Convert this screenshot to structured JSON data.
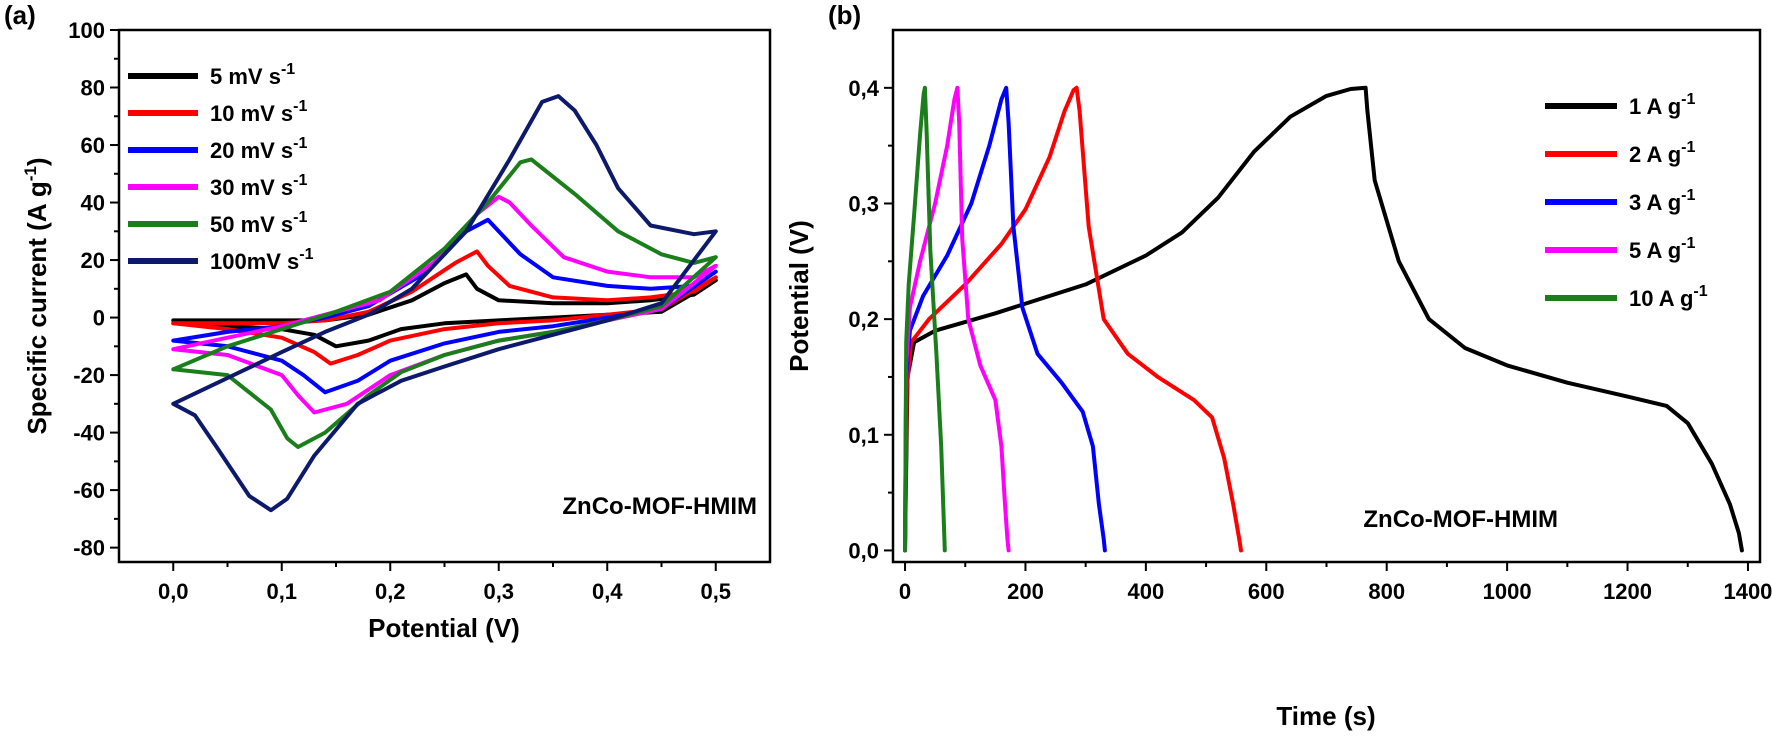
{
  "chart_data": [
    {
      "panel": "(a)",
      "type": "line",
      "xlabel": "Potential (V)",
      "ylabel": "Specific current (A g",
      "ylabel_sup": "-1",
      "ylabel_end": ")",
      "xlim": [
        -0.05,
        0.55
      ],
      "ylim": [
        -85,
        100
      ],
      "x_ticks": [
        0.0,
        0.1,
        0.2,
        0.3,
        0.4,
        0.5
      ],
      "x_tick_labels": [
        "0,0",
        "0,1",
        "0,2",
        "0,3",
        "0,4",
        "0,5"
      ],
      "y_ticks": [
        -80,
        -60,
        -40,
        -20,
        0,
        20,
        40,
        60,
        80,
        100
      ],
      "y_tick_labels": [
        "-80",
        "-60",
        "-40",
        "-20",
        "0",
        "20",
        "40",
        "60",
        "80",
        "100"
      ],
      "annotation": "ZnCo-MOF-HMIM",
      "legend_position": "top-left",
      "series": [
        {
          "name": "5 mV s",
          "sup": "-1",
          "color": "#000000",
          "x": [
            0.0,
            0.05,
            0.1,
            0.13,
            0.15,
            0.18,
            0.21,
            0.25,
            0.3,
            0.35,
            0.4,
            0.45,
            0.5,
            0.48,
            0.44,
            0.4,
            0.35,
            0.3,
            0.28,
            0.27,
            0.25,
            0.22,
            0.18,
            0.14,
            0.1,
            0.05,
            0.0
          ],
          "y": [
            -2,
            -3,
            -4,
            -6,
            -10,
            -8,
            -4,
            -2,
            -1,
            0,
            1,
            2,
            13,
            8,
            6,
            5,
            5,
            6,
            10,
            15,
            12,
            6,
            1,
            -1,
            -1,
            -1,
            -1
          ]
        },
        {
          "name": "10 mV s",
          "sup": "-1",
          "color": "#ff0000",
          "x": [
            0.0,
            0.05,
            0.1,
            0.13,
            0.145,
            0.17,
            0.2,
            0.25,
            0.3,
            0.35,
            0.4,
            0.45,
            0.5,
            0.48,
            0.44,
            0.4,
            0.35,
            0.31,
            0.29,
            0.28,
            0.26,
            0.22,
            0.18,
            0.14,
            0.1,
            0.05,
            0.0
          ],
          "y": [
            -2,
            -4,
            -7,
            -12,
            -16,
            -13,
            -8,
            -4,
            -2,
            -1,
            1,
            3,
            14,
            9,
            7,
            6,
            7,
            11,
            18,
            23,
            19,
            9,
            2,
            -1,
            -2,
            -2,
            -2
          ]
        },
        {
          "name": "20 mV s",
          "sup": "-1",
          "color": "#0000ff",
          "x": [
            0.0,
            0.05,
            0.1,
            0.12,
            0.14,
            0.17,
            0.2,
            0.25,
            0.3,
            0.35,
            0.4,
            0.45,
            0.5,
            0.48,
            0.44,
            0.4,
            0.35,
            0.32,
            0.3,
            0.29,
            0.27,
            0.23,
            0.18,
            0.14,
            0.1,
            0.05,
            0.0
          ],
          "y": [
            -8,
            -10,
            -15,
            -20,
            -26,
            -22,
            -15,
            -9,
            -5,
            -3,
            0,
            3,
            16,
            11,
            10,
            11,
            14,
            22,
            30,
            34,
            30,
            15,
            4,
            0,
            -3,
            -5,
            -8
          ]
        },
        {
          "name": "30 mV s",
          "sup": "-1",
          "color": "#ff00ff",
          "x": [
            0.0,
            0.05,
            0.1,
            0.115,
            0.13,
            0.16,
            0.2,
            0.25,
            0.3,
            0.35,
            0.4,
            0.45,
            0.5,
            0.48,
            0.44,
            0.4,
            0.36,
            0.33,
            0.31,
            0.3,
            0.28,
            0.24,
            0.19,
            0.14,
            0.1,
            0.05,
            0.0
          ],
          "y": [
            -11,
            -13,
            -20,
            -27,
            -33,
            -30,
            -20,
            -13,
            -8,
            -5,
            -1,
            3,
            18,
            14,
            14,
            16,
            21,
            32,
            40,
            42,
            36,
            19,
            6,
            1,
            -3,
            -7,
            -11
          ]
        },
        {
          "name": "50 mV s",
          "sup": "-1",
          "color": "#1a7f1a",
          "x": [
            0.0,
            0.05,
            0.09,
            0.105,
            0.115,
            0.14,
            0.18,
            0.21,
            0.25,
            0.3,
            0.35,
            0.4,
            0.45,
            0.5,
            0.48,
            0.45,
            0.41,
            0.37,
            0.34,
            0.33,
            0.32,
            0.29,
            0.25,
            0.2,
            0.15,
            0.1,
            0.05,
            0.0
          ],
          "y": [
            -18,
            -20,
            -32,
            -42,
            -45,
            -40,
            -27,
            -19,
            -13,
            -8,
            -5,
            -1,
            4,
            21,
            19,
            22,
            30,
            43,
            52,
            55,
            54,
            40,
            24,
            9,
            2,
            -4,
            -10,
            -18
          ]
        },
        {
          "name": "100mV s",
          "sup": "-1",
          "color": "#0d1a6b",
          "x": [
            0.0,
            0.02,
            0.04,
            0.07,
            0.09,
            0.105,
            0.13,
            0.17,
            0.21,
            0.25,
            0.3,
            0.35,
            0.4,
            0.45,
            0.5,
            0.48,
            0.44,
            0.41,
            0.39,
            0.37,
            0.355,
            0.34,
            0.31,
            0.27,
            0.22,
            0.18,
            0.14,
            0.1,
            0.05,
            0.0
          ],
          "y": [
            -30,
            -34,
            -45,
            -62,
            -67,
            -63,
            -48,
            -30,
            -22,
            -17,
            -11,
            -6,
            -1,
            5,
            30,
            29,
            32,
            45,
            60,
            72,
            77,
            75,
            55,
            30,
            10,
            1,
            -5,
            -12,
            -21,
            -30
          ]
        }
      ]
    },
    {
      "panel": "(b)",
      "type": "line",
      "xlabel": "Time (s)",
      "ylabel": "Potential (V)",
      "xlim": [
        -20,
        1420
      ],
      "ylim": [
        -0.01,
        0.45
      ],
      "x_ticks": [
        0,
        200,
        400,
        600,
        800,
        1000,
        1200,
        1400
      ],
      "x_tick_labels": [
        "0",
        "200",
        "400",
        "600",
        "800",
        "1000",
        "1200",
        "1400"
      ],
      "y_ticks": [
        0.0,
        0.1,
        0.2,
        0.3,
        0.4
      ],
      "y_tick_labels": [
        "0,0",
        "0,1",
        "0,2",
        "0,3",
        "0,4"
      ],
      "annotation": "ZnCo-MOF-HMIM",
      "legend_position": "top-right",
      "series": [
        {
          "name": "1 A g",
          "sup": "-1",
          "color": "#000000",
          "x": [
            0,
            4,
            15,
            50,
            150,
            300,
            400,
            460,
            520,
            580,
            640,
            700,
            740,
            765,
            768,
            780,
            820,
            870,
            930,
            1000,
            1100,
            1200,
            1265,
            1300,
            1340,
            1370,
            1385,
            1390
          ],
          "y": [
            0.0,
            0.15,
            0.18,
            0.19,
            0.205,
            0.23,
            0.255,
            0.275,
            0.305,
            0.345,
            0.375,
            0.393,
            0.399,
            0.4,
            0.38,
            0.32,
            0.25,
            0.2,
            0.175,
            0.16,
            0.145,
            0.133,
            0.125,
            0.11,
            0.075,
            0.04,
            0.015,
            0.0
          ]
        },
        {
          "name": "2 A g",
          "sup": "-1",
          "color": "#ff0000",
          "x": [
            0,
            3,
            10,
            40,
            100,
            160,
            200,
            240,
            265,
            280,
            285,
            290,
            305,
            330,
            370,
            420,
            480,
            510,
            530,
            545,
            555,
            558
          ],
          "y": [
            0.0,
            0.14,
            0.18,
            0.2,
            0.23,
            0.265,
            0.295,
            0.34,
            0.38,
            0.398,
            0.4,
            0.38,
            0.28,
            0.2,
            0.17,
            0.15,
            0.13,
            0.115,
            0.08,
            0.04,
            0.01,
            0.0
          ]
        },
        {
          "name": "3 A g",
          "sup": "-1",
          "color": "#0000ff",
          "x": [
            0,
            2,
            8,
            30,
            70,
            110,
            140,
            160,
            168,
            172,
            180,
            195,
            220,
            260,
            295,
            312,
            322,
            330,
            332
          ],
          "y": [
            0.0,
            0.15,
            0.19,
            0.22,
            0.255,
            0.3,
            0.35,
            0.39,
            0.4,
            0.37,
            0.28,
            0.21,
            0.17,
            0.145,
            0.12,
            0.09,
            0.04,
            0.01,
            0.0
          ]
        },
        {
          "name": "5 A g",
          "sup": "-1",
          "color": "#ff00ff",
          "x": [
            0,
            2,
            8,
            25,
            50,
            70,
            82,
            87,
            90,
            95,
            105,
            125,
            150,
            160,
            166,
            170,
            172
          ],
          "y": [
            0.0,
            0.16,
            0.21,
            0.25,
            0.3,
            0.35,
            0.39,
            0.4,
            0.37,
            0.27,
            0.2,
            0.16,
            0.13,
            0.09,
            0.04,
            0.01,
            0.0
          ]
        },
        {
          "name": "10 A g",
          "sup": "-1",
          "color": "#1a7f1a",
          "x": [
            0,
            2,
            6,
            15,
            25,
            31,
            33,
            36,
            42,
            52,
            60,
            64,
            66
          ],
          "y": [
            0.0,
            0.18,
            0.23,
            0.29,
            0.36,
            0.395,
            0.4,
            0.36,
            0.26,
            0.17,
            0.09,
            0.03,
            0.0
          ]
        }
      ]
    }
  ]
}
